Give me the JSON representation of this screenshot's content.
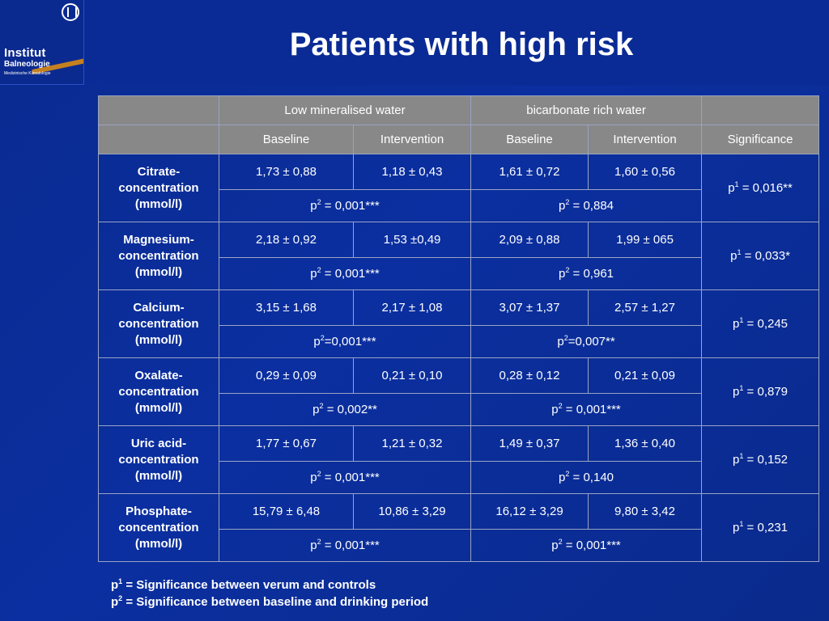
{
  "logo": {
    "line1": "Institut",
    "line2": "Balneologie",
    "line3": "Medizinische Klimatologie"
  },
  "title": "Patients with high risk",
  "table": {
    "group_headers": [
      "",
      "Low mineralised water",
      "bicarbonate rich water",
      ""
    ],
    "sub_headers": [
      "",
      "Baseline",
      "Intervention",
      "Baseline",
      "Intervention",
      "Significance"
    ],
    "rows": [
      {
        "label": [
          "Citrate-",
          "concentration",
          "(mmol/l)"
        ],
        "values": [
          "1,73 ± 0,88",
          "1,18 ± 0,43",
          "1,61 ± 0,72",
          "1,60 ± 0,56"
        ],
        "p2_low": " = 0,001***",
        "p2_bic": " = 0,884",
        "p1": " = 0,016**"
      },
      {
        "label": [
          "Magnesium-",
          "concentration",
          "(mmol/l)"
        ],
        "values": [
          "2,18 ± 0,92",
          "1,53 ±0,49",
          "2,09 ± 0,88",
          "1,99 ± 065"
        ],
        "p2_low": " = 0,001***",
        "p2_bic": " = 0,961",
        "p1": " = 0,033*"
      },
      {
        "label": [
          "Calcium-",
          "concentration",
          "(mmol/l)"
        ],
        "values": [
          "3,15 ± 1,68",
          "2,17 ± 1,08",
          "3,07 ± 1,37",
          "2,57 ± 1,27"
        ],
        "p2_low": "=0,001***",
        "p2_bic": "=0,007**",
        "p1": " = 0,245"
      },
      {
        "label": [
          "Oxalate-",
          "concentration",
          "(mmol/l)"
        ],
        "values": [
          "0,29 ± 0,09",
          "0,21 ± 0,10",
          "0,28 ± 0,12",
          "0,21 ± 0,09"
        ],
        "p2_low": " = 0,002**",
        "p2_bic": " = 0,001***",
        "p1": " = 0,879"
      },
      {
        "label": [
          "Uric acid-",
          "concentration",
          "(mmol/l)"
        ],
        "values": [
          "1,77 ± 0,67",
          "1,21 ± 0,32",
          "1,49 ± 0,37",
          "1,36 ± 0,40"
        ],
        "p2_low": " = 0,001***",
        "p2_bic": " = 0,140",
        "p1": " = 0,152"
      },
      {
        "label": [
          "Phosphate-",
          "concentration",
          "(mmol/l)"
        ],
        "values": [
          "15,79 ± 6,48",
          "10,86 ± 3,29",
          "16,12 ± 3,29",
          "9,80 ± 3,42"
        ],
        "p2_low": " = 0,001***",
        "p2_bic": " = 0,001***",
        "p1": " = 0,231"
      }
    ]
  },
  "p_symbol": "p",
  "sup1": "1",
  "sup2": "2",
  "legend": {
    "line1": " = Significance between verum and controls",
    "line2": " = Significance between baseline and drinking period"
  },
  "colors": {
    "background": "#0b2fa0",
    "header_fill": "#888888",
    "text": "#ffffff"
  }
}
